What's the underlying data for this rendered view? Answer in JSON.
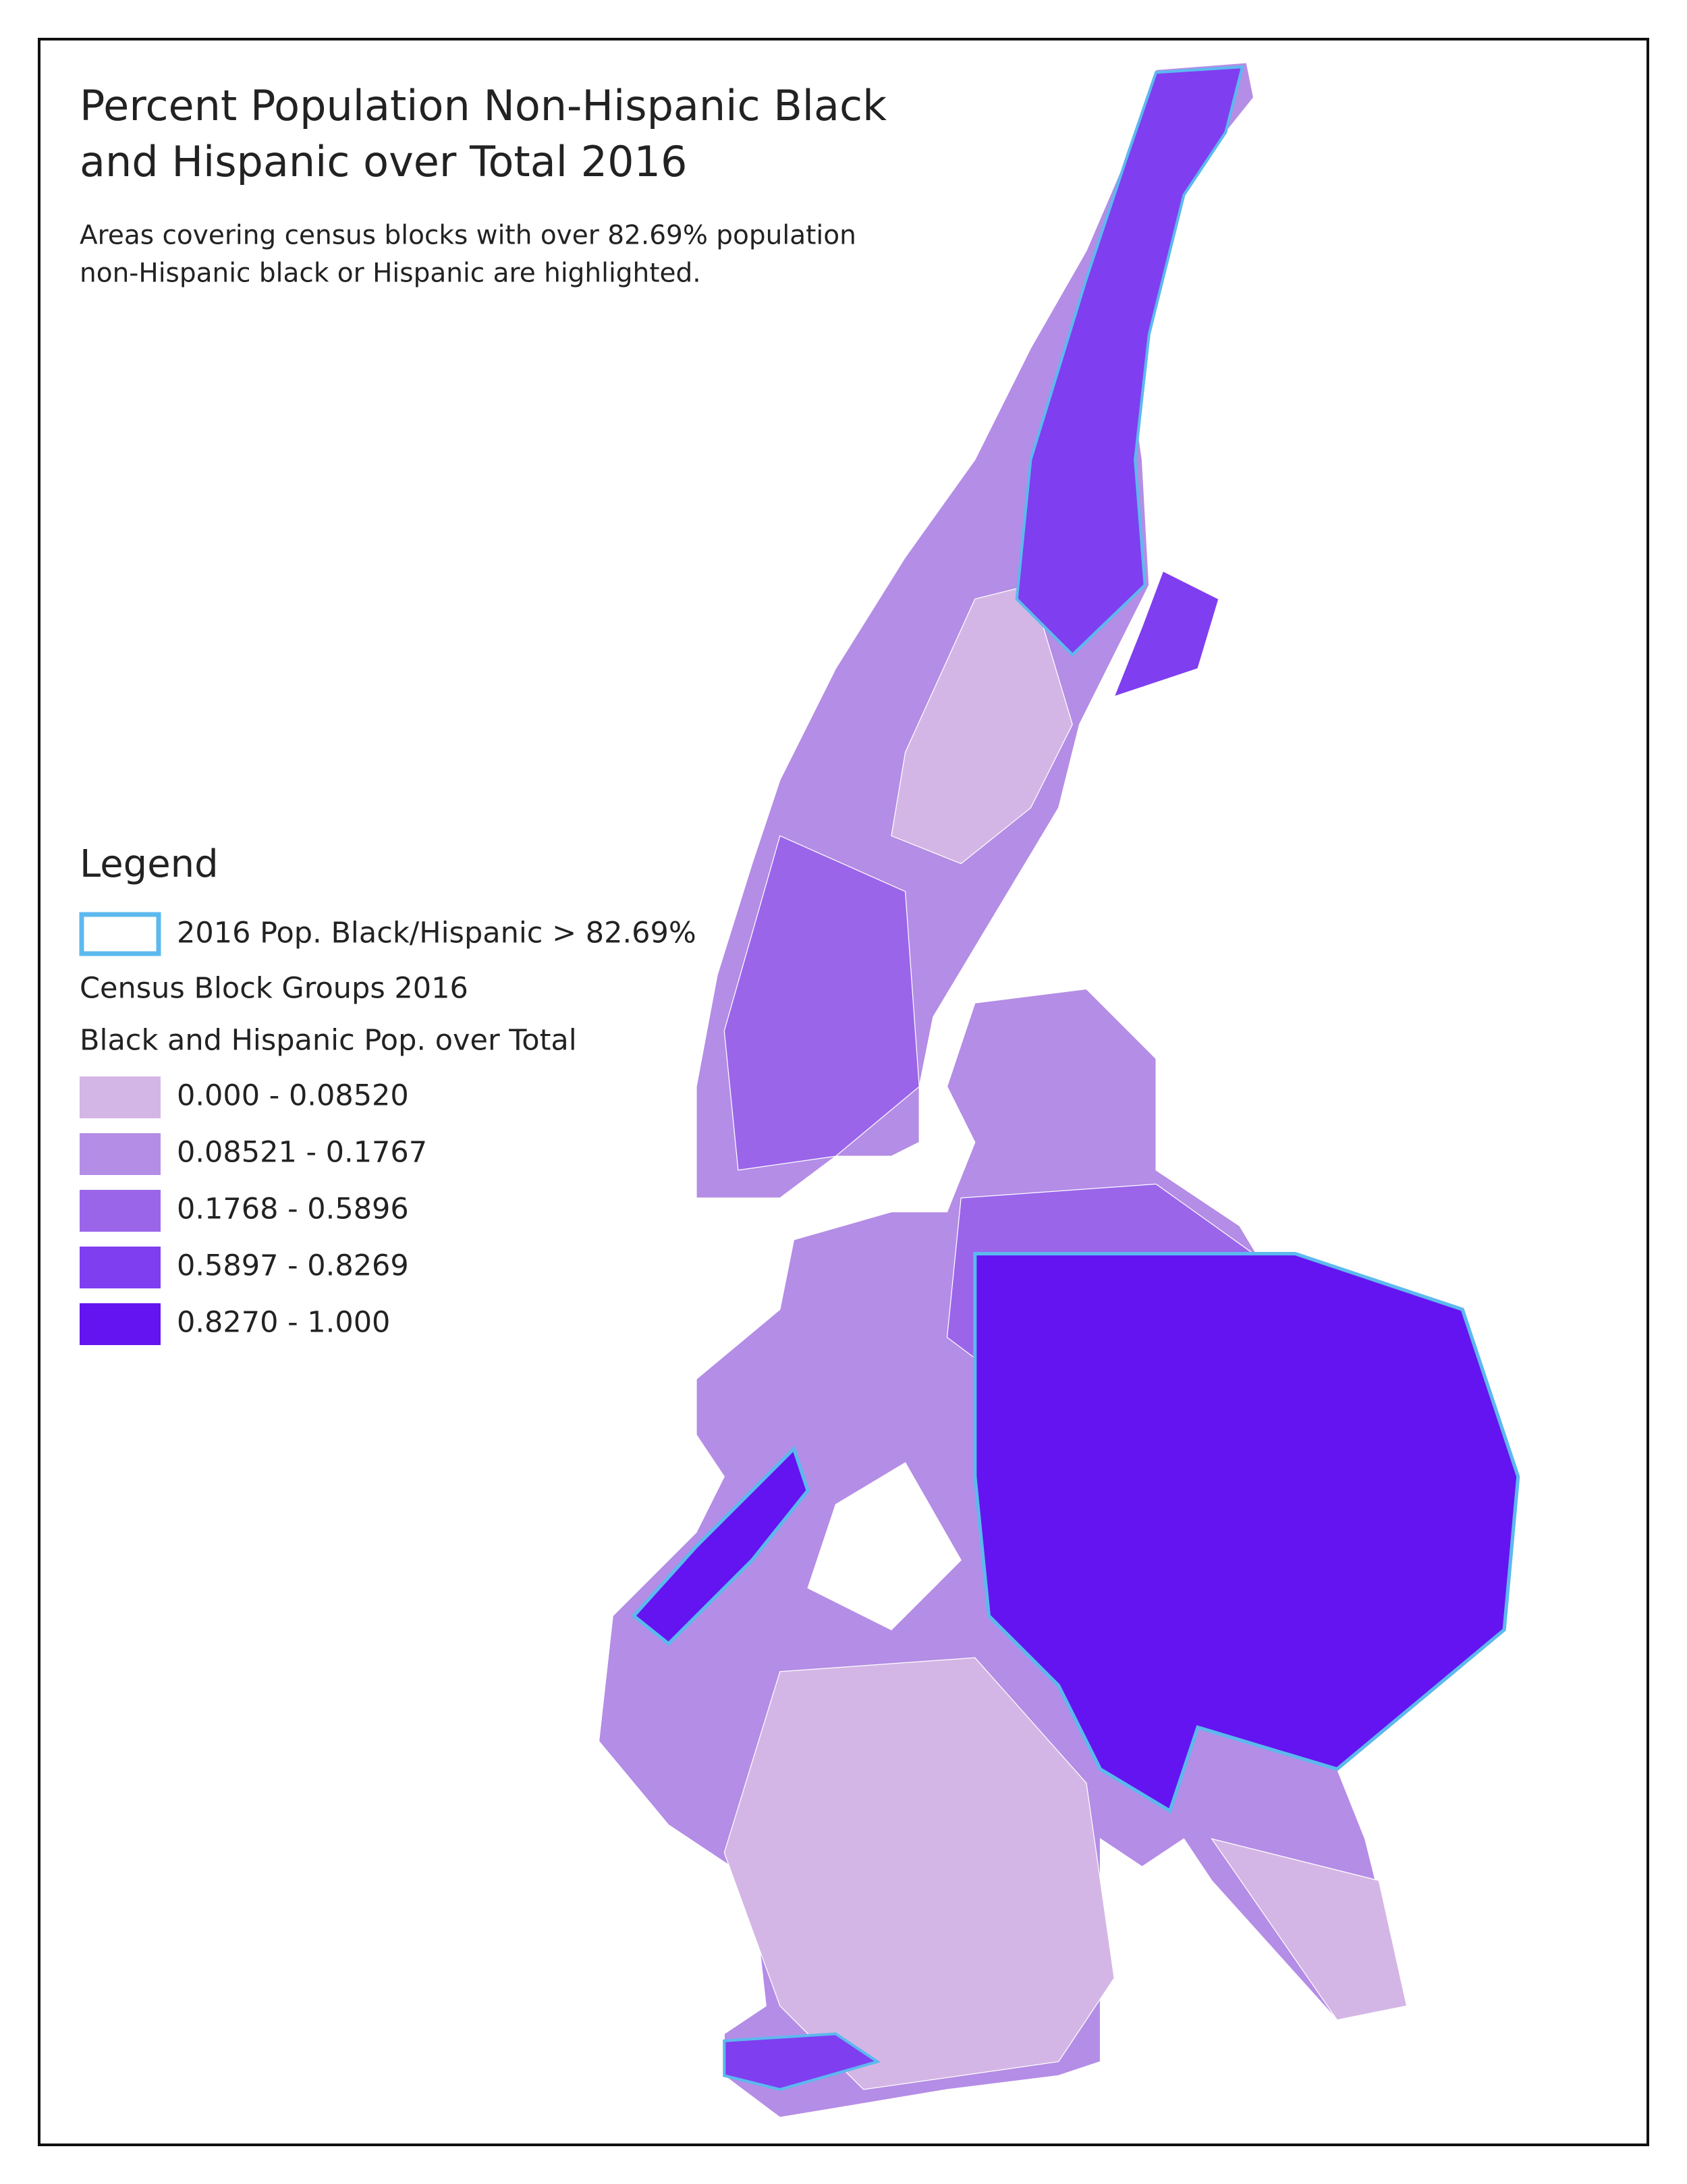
{
  "title": [
    "Percent Population Non-Hispanic Black",
    "and Hispanic over Total 2016"
  ],
  "subtitle": [
    "Areas covering census blocks with over 82.69% population",
    "non-Hispanic black or Hispanic are highlighted."
  ],
  "legend": {
    "title": "Legend",
    "highlight": {
      "label": "2016 Pop. Black/Hispanic > 82.69%",
      "color": "#5cb9ee"
    },
    "group_title": "Census Block Groups 2016",
    "field_title": "Black and Hispanic Pop. over Total",
    "classes": [
      {
        "label": "0.000 - 0.08520",
        "color": "#d4b6e6"
      },
      {
        "label": "0.08521 - 0.1767",
        "color": "#b48de6"
      },
      {
        "label": "0.1768 - 0.5896",
        "color": "#9b65ea"
      },
      {
        "label": "0.5897 - 0.8269",
        "color": "#7f3ef0"
      },
      {
        "label": "0.8270 - 1.000",
        "color": "#6414f0"
      }
    ]
  }
}
